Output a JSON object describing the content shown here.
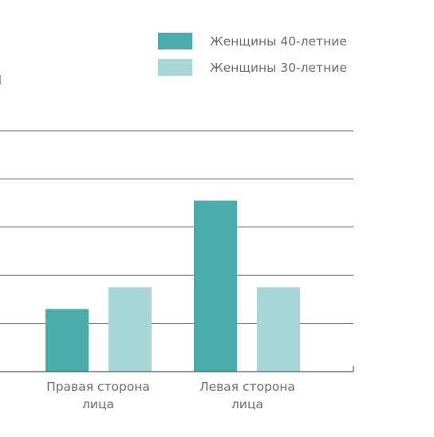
{
  "chart_data": {
    "type": "bar",
    "title": "",
    "xlabel": "",
    "ylabel": "",
    "categories": [
      [
        "Правая сторона",
        "лица"
      ],
      [
        "Левая сторона",
        "лица"
      ]
    ],
    "series": [
      {
        "name": "Женщины 40-летние",
        "color": "#4aadab",
        "values": [
          1.3,
          3.55
        ]
      },
      {
        "name": "Женщины 30-летние",
        "color": "#a8d7d7",
        "values": [
          1.75,
          1.75
        ]
      }
    ],
    "ylim": [
      0,
      5
    ],
    "gridlines": [
      1,
      2,
      3,
      4,
      5
    ],
    "grid": true,
    "legend_position": "top-right",
    "axis_color": "#5a5a5a",
    "grid_color": "#6a6a6a"
  }
}
